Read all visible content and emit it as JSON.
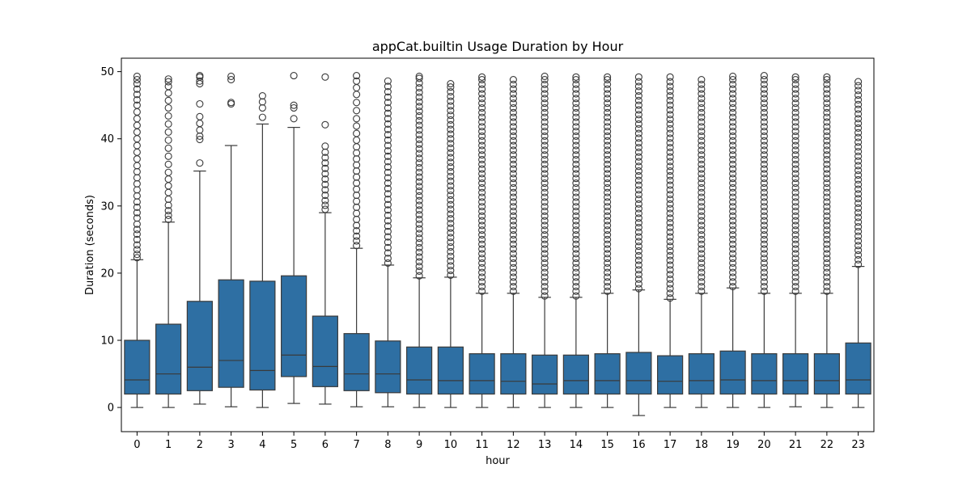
{
  "chart_data": {
    "type": "box",
    "title": "appCat.builtin Usage Duration by Hour",
    "xlabel": "hour",
    "ylabel": "Duration (seconds)",
    "ylim": [
      -3.6,
      52
    ],
    "yticks": [
      0,
      10,
      20,
      30,
      40,
      50
    ],
    "grid": false,
    "legend": "none",
    "box_color": "#2e6fa3",
    "line_color": "#3a3a3a",
    "categories": [
      "0",
      "1",
      "2",
      "3",
      "4",
      "5",
      "6",
      "7",
      "8",
      "9",
      "10",
      "11",
      "12",
      "13",
      "14",
      "15",
      "16",
      "17",
      "18",
      "19",
      "20",
      "21",
      "22",
      "23"
    ],
    "boxes": [
      {
        "q1": 2.0,
        "median": 4.1,
        "q3": 10.0,
        "whisker_low": 0.0,
        "whisker_high": 22.0,
        "outliers": [
          22.3,
          22.8,
          23.5,
          24.2,
          25.0,
          25.8,
          26.5,
          27.3,
          28.2,
          29.0,
          29.8,
          30.6,
          31.5,
          32.4,
          33.3,
          34.2,
          35.1,
          36.0,
          37.0,
          38.0,
          39.0,
          40.0,
          41.0,
          42.0,
          43.0,
          44.0,
          45.0,
          45.8,
          46.6,
          47.4,
          48.2,
          48.8,
          49.3
        ]
      },
      {
        "q1": 2.0,
        "median": 5.0,
        "q3": 12.4,
        "whisker_low": 0.0,
        "whisker_high": 27.6,
        "outliers": [
          28.0,
          28.6,
          29.3,
          30.1,
          31.0,
          32.0,
          33.0,
          34.0,
          35.0,
          36.2,
          37.4,
          38.6,
          39.8,
          41.0,
          42.2,
          43.4,
          44.6,
          45.7,
          46.8,
          47.8,
          48.5,
          48.9
        ]
      },
      {
        "q1": 2.5,
        "median": 6.0,
        "q3": 15.8,
        "whisker_low": 0.5,
        "whisker_high": 35.2,
        "outliers": [
          36.4,
          39.9,
          40.4,
          41.3,
          42.3,
          43.3,
          45.2,
          48.2,
          48.6,
          49.2,
          49.4
        ]
      },
      {
        "q1": 3.0,
        "median": 7.0,
        "q3": 19.0,
        "whisker_low": 0.1,
        "whisker_high": 39.0,
        "outliers": [
          45.2,
          45.4,
          48.8,
          49.3
        ]
      },
      {
        "q1": 2.6,
        "median": 5.5,
        "q3": 18.8,
        "whisker_low": 0.0,
        "whisker_high": 42.2,
        "outliers": [
          43.2,
          44.6,
          45.5,
          46.4
        ]
      },
      {
        "q1": 4.6,
        "median": 7.8,
        "q3": 19.6,
        "whisker_low": 0.6,
        "whisker_high": 41.7,
        "outliers": [
          43.0,
          44.6,
          45.0,
          49.4
        ]
      },
      {
        "q1": 3.1,
        "median": 6.1,
        "q3": 13.6,
        "whisker_low": 0.5,
        "whisker_high": 29.0,
        "outliers": [
          29.5,
          30.1,
          30.8,
          31.6,
          32.4,
          33.2,
          34.0,
          34.8,
          35.6,
          36.4,
          37.2,
          38.0,
          38.9,
          42.1,
          49.2
        ]
      },
      {
        "q1": 2.5,
        "median": 5.0,
        "q3": 11.0,
        "whisker_low": 0.1,
        "whisker_high": 23.7,
        "outliers": [
          24.1,
          24.8,
          25.5,
          26.3,
          27.1,
          28.0,
          28.9,
          29.8,
          30.7,
          31.6,
          32.5,
          33.4,
          34.3,
          35.2,
          36.1,
          37.0,
          37.9,
          38.8,
          39.8,
          40.8,
          41.9,
          43.0,
          44.2,
          45.4,
          46.6,
          47.6,
          48.6,
          49.4
        ]
      },
      {
        "q1": 2.2,
        "median": 5.0,
        "q3": 9.9,
        "whisker_low": 0.1,
        "whisker_high": 21.2,
        "outliers": [
          21.5,
          22.2,
          23.0,
          23.8,
          24.6,
          25.4,
          26.2,
          27.0,
          27.8,
          28.6,
          29.4,
          30.2,
          31.0,
          31.8,
          32.6,
          33.4,
          34.2,
          35.0,
          35.8,
          36.6,
          37.4,
          38.2,
          39.0,
          39.8,
          40.6,
          41.4,
          42.2,
          43.0,
          43.8,
          44.6,
          45.4,
          46.2,
          47.0,
          47.8,
          48.6
        ]
      },
      {
        "q1": 2.0,
        "median": 4.1,
        "q3": 9.0,
        "whisker_low": 0.0,
        "whisker_high": 19.3,
        "outliers": [
          19.6,
          20.3,
          21.0,
          21.7,
          22.4,
          23.1,
          23.8,
          24.5,
          25.2,
          25.9,
          26.6,
          27.3,
          28.0,
          28.7,
          29.4,
          30.1,
          30.8,
          31.5,
          32.2,
          32.9,
          33.6,
          34.3,
          35.0,
          35.7,
          36.4,
          37.1,
          37.8,
          38.5,
          39.2,
          39.9,
          40.6,
          41.3,
          42.0,
          42.7,
          43.4,
          44.1,
          44.8,
          45.5,
          46.2,
          46.9,
          47.6,
          48.3,
          49.0,
          49.3
        ]
      },
      {
        "q1": 2.0,
        "median": 4.0,
        "q3": 9.0,
        "whisker_low": 0.0,
        "whisker_high": 19.4,
        "outliers": [
          19.7,
          20.4,
          21.1,
          21.8,
          22.5,
          23.2,
          23.9,
          24.6,
          25.3,
          26.0,
          26.7,
          27.4,
          28.1,
          28.8,
          29.5,
          30.2,
          30.9,
          31.6,
          32.3,
          33.0,
          33.7,
          34.4,
          35.1,
          35.8,
          36.5,
          37.2,
          37.9,
          38.6,
          39.3,
          40.0,
          40.7,
          41.4,
          42.1,
          42.8,
          43.5,
          44.2,
          44.9,
          45.6,
          46.3,
          47.0,
          47.7,
          48.2
        ]
      },
      {
        "q1": 2.0,
        "median": 4.0,
        "q3": 8.0,
        "whisker_low": 0.0,
        "whisker_high": 17.0,
        "outliers": [
          17.3,
          18.0,
          18.7,
          19.4,
          20.1,
          20.8,
          21.5,
          22.2,
          22.9,
          23.6,
          24.3,
          25.0,
          25.7,
          26.4,
          27.1,
          27.8,
          28.5,
          29.2,
          29.9,
          30.6,
          31.3,
          32.0,
          32.7,
          33.4,
          34.1,
          34.8,
          35.5,
          36.2,
          36.9,
          37.6,
          38.3,
          39.0,
          39.7,
          40.4,
          41.1,
          41.8,
          42.5,
          43.2,
          43.9,
          44.6,
          45.3,
          46.0,
          46.7,
          47.4,
          48.1,
          48.8,
          49.2
        ]
      },
      {
        "q1": 2.0,
        "median": 3.9,
        "q3": 8.0,
        "whisker_low": 0.0,
        "whisker_high": 17.0,
        "outliers": [
          17.3,
          18.0,
          18.7,
          19.4,
          20.1,
          20.8,
          21.5,
          22.2,
          22.9,
          23.6,
          24.3,
          25.0,
          25.7,
          26.4,
          27.1,
          27.8,
          28.5,
          29.2,
          29.9,
          30.6,
          31.3,
          32.0,
          32.7,
          33.4,
          34.1,
          34.8,
          35.5,
          36.2,
          36.9,
          37.6,
          38.3,
          39.0,
          39.7,
          40.4,
          41.1,
          41.8,
          42.5,
          43.2,
          43.9,
          44.6,
          45.3,
          46.0,
          46.7,
          47.4,
          48.1,
          48.8
        ]
      },
      {
        "q1": 2.0,
        "median": 3.5,
        "q3": 7.8,
        "whisker_low": 0.0,
        "whisker_high": 16.4,
        "outliers": [
          16.6,
          17.3,
          18.0,
          18.7,
          19.4,
          20.1,
          20.8,
          21.5,
          22.2,
          22.9,
          23.6,
          24.3,
          25.0,
          25.7,
          26.4,
          27.1,
          27.8,
          28.5,
          29.2,
          29.9,
          30.6,
          31.3,
          32.0,
          32.7,
          33.4,
          34.1,
          34.8,
          35.5,
          36.2,
          36.9,
          37.6,
          38.3,
          39.0,
          39.7,
          40.4,
          41.1,
          41.8,
          42.5,
          43.2,
          43.9,
          44.6,
          45.3,
          46.0,
          46.7,
          47.4,
          48.1,
          48.8,
          49.3
        ]
      },
      {
        "q1": 2.0,
        "median": 4.0,
        "q3": 7.8,
        "whisker_low": 0.0,
        "whisker_high": 16.4,
        "outliers": [
          16.6,
          17.3,
          18.0,
          18.7,
          19.4,
          20.1,
          20.8,
          21.5,
          22.2,
          22.9,
          23.6,
          24.3,
          25.0,
          25.7,
          26.4,
          27.1,
          27.8,
          28.5,
          29.2,
          29.9,
          30.6,
          31.3,
          32.0,
          32.7,
          33.4,
          34.1,
          34.8,
          35.5,
          36.2,
          36.9,
          37.6,
          38.3,
          39.0,
          39.7,
          40.4,
          41.1,
          41.8,
          42.5,
          43.2,
          43.9,
          44.6,
          45.3,
          46.0,
          46.7,
          47.4,
          48.1,
          48.8,
          49.2
        ]
      },
      {
        "q1": 2.0,
        "median": 4.0,
        "q3": 8.0,
        "whisker_low": 0.0,
        "whisker_high": 17.0,
        "outliers": [
          17.3,
          18.0,
          18.7,
          19.4,
          20.1,
          20.8,
          21.5,
          22.2,
          22.9,
          23.6,
          24.3,
          25.0,
          25.7,
          26.4,
          27.1,
          27.8,
          28.5,
          29.2,
          29.9,
          30.6,
          31.3,
          32.0,
          32.7,
          33.4,
          34.1,
          34.8,
          35.5,
          36.2,
          36.9,
          37.6,
          38.3,
          39.0,
          39.7,
          40.4,
          41.1,
          41.8,
          42.5,
          43.2,
          43.9,
          44.6,
          45.3,
          46.0,
          46.7,
          47.4,
          48.1,
          48.8,
          49.2
        ]
      },
      {
        "q1": 2.0,
        "median": 4.0,
        "q3": 8.2,
        "whisker_low": -1.2,
        "whisker_high": 17.5,
        "outliers": [
          17.7,
          18.4,
          19.1,
          19.8,
          20.5,
          21.2,
          21.9,
          22.6,
          23.3,
          24.0,
          24.7,
          25.4,
          26.1,
          26.8,
          27.5,
          28.2,
          28.9,
          29.6,
          30.3,
          31.0,
          31.7,
          32.4,
          33.1,
          33.8,
          34.5,
          35.2,
          35.9,
          36.6,
          37.3,
          38.0,
          38.7,
          39.4,
          40.1,
          40.8,
          41.5,
          42.2,
          42.9,
          43.6,
          44.3,
          45.0,
          45.7,
          46.4,
          47.1,
          47.8,
          48.5,
          49.2
        ]
      },
      {
        "q1": 2.0,
        "median": 3.9,
        "q3": 7.7,
        "whisker_low": 0.0,
        "whisker_high": 16.1,
        "outliers": [
          16.3,
          17.0,
          17.7,
          18.4,
          19.1,
          19.8,
          20.5,
          21.2,
          21.9,
          22.6,
          23.3,
          24.0,
          24.7,
          25.4,
          26.1,
          26.8,
          27.5,
          28.2,
          28.9,
          29.6,
          30.3,
          31.0,
          31.7,
          32.4,
          33.1,
          33.8,
          34.5,
          35.2,
          35.9,
          36.6,
          37.3,
          38.0,
          38.7,
          39.4,
          40.1,
          40.8,
          41.5,
          42.2,
          42.9,
          43.6,
          44.3,
          45.0,
          45.7,
          46.4,
          47.1,
          47.8,
          48.5,
          49.2
        ]
      },
      {
        "q1": 2.0,
        "median": 4.0,
        "q3": 8.0,
        "whisker_low": 0.0,
        "whisker_high": 17.0,
        "outliers": [
          17.3,
          18.0,
          18.7,
          19.4,
          20.1,
          20.8,
          21.5,
          22.2,
          22.9,
          23.6,
          24.3,
          25.0,
          25.7,
          26.4,
          27.1,
          27.8,
          28.5,
          29.2,
          29.9,
          30.6,
          31.3,
          32.0,
          32.7,
          33.4,
          34.1,
          34.8,
          35.5,
          36.2,
          36.9,
          37.6,
          38.3,
          39.0,
          39.7,
          40.4,
          41.1,
          41.8,
          42.5,
          43.2,
          43.9,
          44.6,
          45.3,
          46.0,
          46.7,
          47.4,
          48.1,
          48.8
        ]
      },
      {
        "q1": 2.0,
        "median": 4.1,
        "q3": 8.4,
        "whisker_low": 0.0,
        "whisker_high": 17.8,
        "outliers": [
          18.0,
          18.7,
          19.4,
          20.1,
          20.8,
          21.5,
          22.2,
          22.9,
          23.6,
          24.3,
          25.0,
          25.7,
          26.4,
          27.1,
          27.8,
          28.5,
          29.2,
          29.9,
          30.6,
          31.3,
          32.0,
          32.7,
          33.4,
          34.1,
          34.8,
          35.5,
          36.2,
          36.9,
          37.6,
          38.3,
          39.0,
          39.7,
          40.4,
          41.1,
          41.8,
          42.5,
          43.2,
          43.9,
          44.6,
          45.3,
          46.0,
          46.7,
          47.4,
          48.1,
          48.8,
          49.3
        ]
      },
      {
        "q1": 2.0,
        "median": 4.0,
        "q3": 8.0,
        "whisker_low": 0.0,
        "whisker_high": 17.0,
        "outliers": [
          17.3,
          18.0,
          18.7,
          19.4,
          20.1,
          20.8,
          21.5,
          22.2,
          22.9,
          23.6,
          24.3,
          25.0,
          25.7,
          26.4,
          27.1,
          27.8,
          28.5,
          29.2,
          29.9,
          30.6,
          31.3,
          32.0,
          32.7,
          33.4,
          34.1,
          34.8,
          35.5,
          36.2,
          36.9,
          37.6,
          38.3,
          39.0,
          39.7,
          40.4,
          41.1,
          41.8,
          42.5,
          43.2,
          43.9,
          44.6,
          45.3,
          46.0,
          46.7,
          47.4,
          48.1,
          48.8,
          49.4
        ]
      },
      {
        "q1": 2.0,
        "median": 4.0,
        "q3": 8.0,
        "whisker_low": 0.1,
        "whisker_high": 17.0,
        "outliers": [
          17.3,
          18.0,
          18.7,
          19.4,
          20.1,
          20.8,
          21.5,
          22.2,
          22.9,
          23.6,
          24.3,
          25.0,
          25.7,
          26.4,
          27.1,
          27.8,
          28.5,
          29.2,
          29.9,
          30.6,
          31.3,
          32.0,
          32.7,
          33.4,
          34.1,
          34.8,
          35.5,
          36.2,
          36.9,
          37.6,
          38.3,
          39.0,
          39.7,
          40.4,
          41.1,
          41.8,
          42.5,
          43.2,
          43.9,
          44.6,
          45.3,
          46.0,
          46.7,
          47.4,
          48.1,
          48.8,
          49.2
        ]
      },
      {
        "q1": 2.0,
        "median": 4.0,
        "q3": 8.0,
        "whisker_low": 0.0,
        "whisker_high": 17.0,
        "outliers": [
          17.3,
          18.0,
          18.7,
          19.4,
          20.1,
          20.8,
          21.5,
          22.2,
          22.9,
          23.6,
          24.3,
          25.0,
          25.7,
          26.4,
          27.1,
          27.8,
          28.5,
          29.2,
          29.9,
          30.6,
          31.3,
          32.0,
          32.7,
          33.4,
          34.1,
          34.8,
          35.5,
          36.2,
          36.9,
          37.6,
          38.3,
          39.0,
          39.7,
          40.4,
          41.1,
          41.8,
          42.5,
          43.2,
          43.9,
          44.6,
          45.3,
          46.0,
          46.7,
          47.4,
          48.1,
          48.8,
          49.2
        ]
      },
      {
        "q1": 2.0,
        "median": 4.1,
        "q3": 9.6,
        "whisker_low": 0.0,
        "whisker_high": 21.0,
        "outliers": [
          21.3,
          22.0,
          22.7,
          23.4,
          24.1,
          24.8,
          25.5,
          26.2,
          26.9,
          27.6,
          28.3,
          29.0,
          29.7,
          30.4,
          31.1,
          31.8,
          32.5,
          33.2,
          33.9,
          34.6,
          35.3,
          36.0,
          36.7,
          37.4,
          38.1,
          38.8,
          39.5,
          40.2,
          40.9,
          41.6,
          42.3,
          43.0,
          43.7,
          44.4,
          45.1,
          45.8,
          46.5,
          47.2,
          47.9,
          48.5
        ]
      }
    ]
  }
}
